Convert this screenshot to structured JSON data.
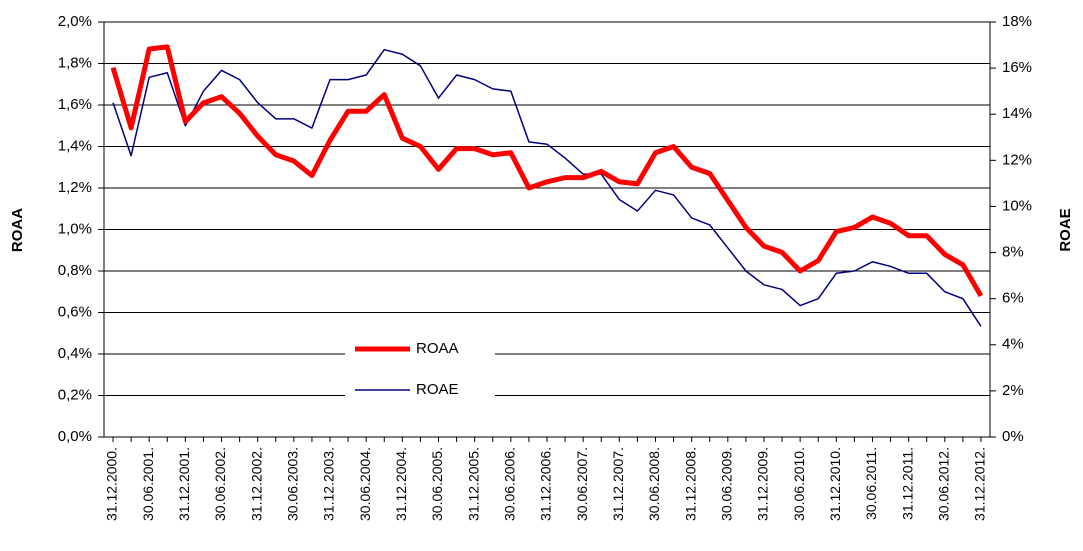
{
  "chart_data": {
    "type": "line",
    "categories": [
      "31.12.2000.",
      null,
      "30.06.2001.",
      null,
      "31.12.2001.",
      null,
      "30.06.2002.",
      null,
      "31.12.2002.",
      null,
      "30.06.2003.",
      null,
      "31.12.2003.",
      null,
      "30.06.2004.",
      null,
      "31.12.2004.",
      null,
      "30.06.2005.",
      null,
      "31.12.2005.",
      null,
      "30.06.2006.",
      null,
      "31.12.2006.",
      null,
      "30.06.2007.",
      null,
      "31.12.2007.",
      null,
      "30.06.2008.",
      null,
      "31.12.2008.",
      null,
      "30.06.2009.",
      null,
      "31.12.2009.",
      null,
      "30.06.2010.",
      null,
      "31.12.2010.",
      null,
      "30.06.2011.",
      null,
      "31.12.2011.",
      null,
      "30.06.2012.",
      null,
      "31.12.2012."
    ],
    "y_label": "ROAA",
    "y2_label": "ROAE",
    "series": [
      {
        "name": "ROAA",
        "color": "#ff0000",
        "values": [
          1.78,
          1.49,
          1.87,
          1.88,
          1.52,
          1.61,
          1.64,
          1.56,
          1.45,
          1.36,
          1.33,
          1.26,
          1.43,
          1.57,
          1.57,
          1.65,
          1.44,
          1.4,
          1.29,
          1.39,
          1.39,
          1.36,
          1.37,
          1.2,
          1.23,
          1.25,
          1.25,
          1.28,
          1.23,
          1.22,
          1.37,
          1.4,
          1.3,
          1.27,
          1.14,
          1.01,
          0.92,
          0.89,
          0.8,
          0.85,
          0.99,
          1.01,
          1.06,
          1.03,
          0.97,
          0.97,
          0.88,
          0.83,
          0.68
        ]
      },
      {
        "name": "ROAE",
        "color": "#000080",
        "axis": "y2",
        "values": [
          14.5,
          12.2,
          15.6,
          15.8,
          13.5,
          15.0,
          15.9,
          15.5,
          14.5,
          13.8,
          13.8,
          13.4,
          15.5,
          15.5,
          15.7,
          16.8,
          16.6,
          16.1,
          14.7,
          15.7,
          15.5,
          15.1,
          15.0,
          12.8,
          12.7,
          12.1,
          11.4,
          11.4,
          10.3,
          9.8,
          10.7,
          10.5,
          9.5,
          9.2,
          8.2,
          7.2,
          6.6,
          6.4,
          5.7,
          6.0,
          7.1,
          7.2,
          7.6,
          7.4,
          7.1,
          7.1,
          6.3,
          6.0,
          4.8
        ]
      }
    ],
    "ylim": [
      0,
      2.0
    ],
    "yticks": [
      {
        "value": 0,
        "label": "0,0%"
      },
      {
        "value": 0.2,
        "label": "0,2%"
      },
      {
        "value": 0.4,
        "label": "0,4%"
      },
      {
        "value": 0.6,
        "label": "0,6%"
      },
      {
        "value": 0.8,
        "label": "0,8%"
      },
      {
        "value": 1.0,
        "label": "1,0%"
      },
      {
        "value": 1.2,
        "label": "1,2%"
      },
      {
        "value": 1.4,
        "label": "1,4%"
      },
      {
        "value": 1.6,
        "label": "1,6%"
      },
      {
        "value": 1.8,
        "label": "1,8%"
      },
      {
        "value": 2.0,
        "label": "2,0%"
      }
    ],
    "y2lim": [
      0,
      18
    ],
    "y2ticks": [
      {
        "value": 0,
        "label": "0%"
      },
      {
        "value": 2,
        "label": "2%"
      },
      {
        "value": 4,
        "label": "4%"
      },
      {
        "value": 6,
        "label": "6%"
      },
      {
        "value": 8,
        "label": "8%"
      },
      {
        "value": 10,
        "label": "10%"
      },
      {
        "value": 12,
        "label": "12%"
      },
      {
        "value": 14,
        "label": "14%"
      },
      {
        "value": 16,
        "label": "16%"
      },
      {
        "value": 18,
        "label": "18%"
      }
    ],
    "grid": true
  }
}
